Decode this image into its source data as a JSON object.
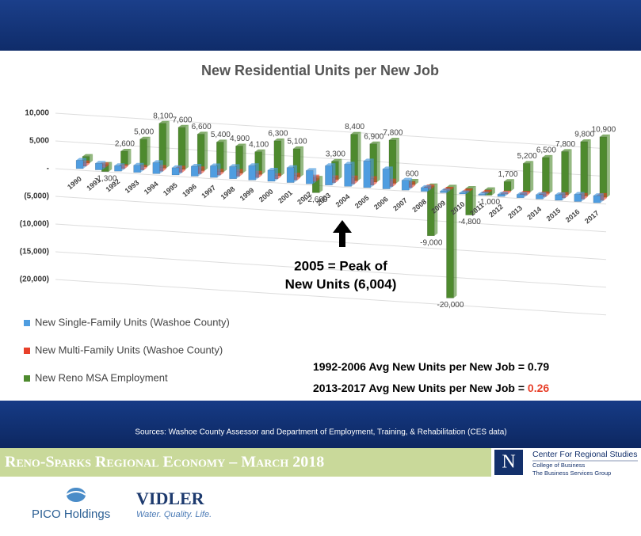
{
  "chart_data": {
    "type": "bar3d",
    "title": "New Residential Units per New Job",
    "categories": [
      "1990",
      "1991",
      "1992",
      "1993",
      "1994",
      "1995",
      "1996",
      "1997",
      "1998",
      "1999",
      "2000",
      "2001",
      "2002",
      "2003",
      "2004",
      "2005",
      "2006",
      "2007",
      "2008",
      "2009",
      "2010",
      "2011",
      "2012",
      "2013",
      "2014",
      "2015",
      "2016",
      "2017"
    ],
    "series": [
      {
        "name": "New Single-Family Units (Washoe County)",
        "color": "#4f9de0",
        "values": [
          1500,
          1200,
          1000,
          1300,
          2000,
          1300,
          1800,
          2100,
          2200,
          2600,
          2000,
          2700,
          2400,
          3500,
          4000,
          4800,
          3600,
          1800,
          700,
          300,
          200,
          200,
          400,
          600,
          800,
          1000,
          1300,
          1300
        ]
      },
      {
        "name": "New Multi-Family Units (Washoe County)",
        "color": "#e8402a",
        "values": [
          600,
          500,
          400,
          500,
          700,
          800,
          900,
          700,
          900,
          800,
          600,
          900,
          800,
          900,
          1100,
          1200,
          1000,
          700,
          400,
          200,
          100,
          100,
          200,
          400,
          500,
          600,
          700,
          900
        ]
      },
      {
        "name": "New Reno MSA Employment",
        "color": "#4e8a2e",
        "values": [
          1200,
          -1300,
          2600,
          5000,
          8100,
          7600,
          6600,
          5400,
          4900,
          4100,
          6300,
          5100,
          -2600,
          3300,
          8400,
          6900,
          7800,
          600,
          -9000,
          -20000,
          -4800,
          -1000,
          1700,
          5200,
          6500,
          7800,
          9800,
          10900
        ],
        "value_labels": [
          null,
          "-1,300",
          "2,600",
          "5,000",
          "8,100",
          "7,600",
          "6,600",
          "5,400",
          "4,900",
          "4,100",
          "6,300",
          "5,100",
          "-2,600",
          "3,300",
          "8,400",
          "6,900",
          "7,800",
          "600",
          "-9,000",
          "-20,000",
          "-4,800",
          "-1,000",
          "1,700",
          "5,200",
          "6,500",
          "7,800",
          "9,800",
          "10,900"
        ]
      }
    ],
    "ylim": [
      -20000,
      10000
    ],
    "yticks": [
      {
        "value": 10000,
        "label": "10,000"
      },
      {
        "value": 5000,
        "label": "5,000"
      },
      {
        "value": 0,
        "label": "-"
      },
      {
        "value": -5000,
        "label": "(5,000)"
      },
      {
        "value": -10000,
        "label": "(10,000)"
      },
      {
        "value": -15000,
        "label": "(15,000)"
      },
      {
        "value": -20000,
        "label": "(20,000)"
      }
    ],
    "grid": true,
    "annotation": [
      "2005 = Peak of",
      "New Units (6,004)"
    ],
    "notes": [
      {
        "label": "1992-2006 Avg New Units per New Job = ",
        "value": 0.79
      },
      {
        "label": "2013-2017 Avg New Units per New Job = ",
        "value": 0.26
      }
    ]
  },
  "footer": {
    "source": "Sources: Washoe County Assessor and Department of Employment, Training, & Rehabilitation (CES data)",
    "banner": "Reno-Sparks Regional Economy – March 2018",
    "center": [
      "Center For Regional Studies",
      "College of Business",
      "The Business Services Group"
    ],
    "logo_n": "N",
    "pico": "PICO Holdings",
    "vidler": "VIDLER",
    "vidler_tag": "Water. Quality. Life."
  }
}
